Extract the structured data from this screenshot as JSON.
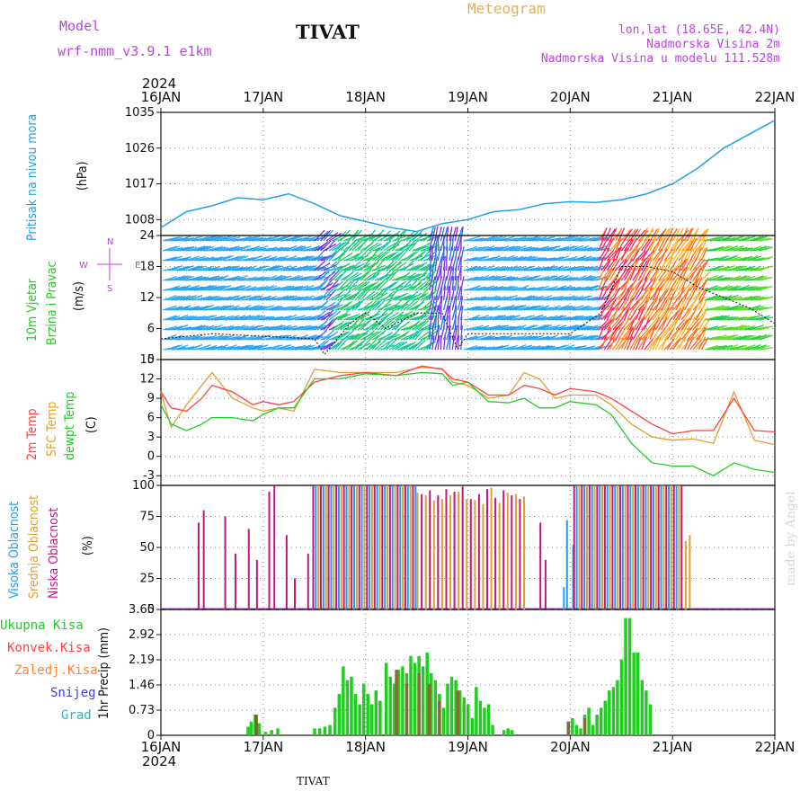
{
  "header": {
    "model_label": "Model",
    "model_name": "wrf-nmm_v3.9.1 e1km",
    "station": "TIVAT",
    "meteogram": "Meteogram",
    "lonlat": "lon,lat (18.65E, 42.4N)",
    "elevation": "Nadmorska Visina 2m",
    "model_elevation": "Nadmorska Visina u modelu 111.528m",
    "year_top": "2024",
    "year_bottom": "2024",
    "footer_station": "TIVAT",
    "watermark": "made by Angel"
  },
  "colors": {
    "pressure": "#1ea0ef",
    "wind_label": "#22cc22",
    "purple": "#bb44dd",
    "temp2m": "#ff4040",
    "sfc": "#e0a030",
    "dew": "#22cc22",
    "high_cloud": "#1ea0ef",
    "mid_cloud": "#e0a030",
    "low_cloud": "#c01880",
    "total_precip": "#22cc22",
    "conv_precip": "#ff4040",
    "frz_precip": "#ff7f30",
    "snow": "#4040dd",
    "hail": "#22bbbb"
  },
  "chart_data": {
    "type": "line",
    "x_axis": {
      "labels": [
        "16JAN",
        "17JAN",
        "18JAN",
        "19JAN",
        "20JAN",
        "21JAN",
        "22JAN"
      ],
      "range_days": [
        0,
        6
      ]
    },
    "panels": {
      "pressure": {
        "label": "Pritisak na nivou mora",
        "unit": "(hPa)",
        "ylim": [
          1004,
          1035
        ],
        "ticks": [
          1008,
          1017,
          1026,
          1035
        ],
        "x": [
          0,
          0.25,
          0.5,
          0.75,
          1.0,
          1.25,
          1.5,
          1.75,
          2.0,
          2.25,
          2.5,
          2.75,
          3.0,
          3.25,
          3.5,
          3.75,
          4.0,
          4.25,
          4.5,
          4.75,
          5.0,
          5.25,
          5.5,
          5.75,
          6.0
        ],
        "values": [
          1006,
          1010,
          1011.5,
          1013.5,
          1013,
          1014.5,
          1012,
          1009,
          1007.5,
          1006,
          1005,
          1007,
          1008,
          1010,
          1010.5,
          1012,
          1012.5,
          1012.3,
          1013,
          1014.5,
          1017,
          1021,
          1026,
          1029.5,
          1033
        ]
      },
      "wind": {
        "label": "10m Vjetar Brzina i Pravac",
        "unit": "(m/s)",
        "legend": {
          "n": "N",
          "e": "E",
          "s": "S",
          "w": "W"
        },
        "ylim": [
          0,
          24
        ],
        "ticks": [
          0,
          6,
          12,
          18,
          24
        ],
        "speed_x": [
          0,
          0.5,
          1.0,
          1.5,
          1.6,
          1.85,
          2.0,
          2.2,
          2.5,
          2.75,
          2.9,
          3.0,
          3.5,
          4.0,
          4.3,
          4.5,
          4.75,
          5.0,
          5.25,
          5.5,
          5.75,
          6.0
        ],
        "speed": [
          4,
          5,
          4.5,
          4,
          1,
          7,
          9,
          6,
          9,
          9,
          2,
          5,
          5,
          5,
          9,
          18,
          18,
          17,
          14,
          12,
          10,
          7
        ]
      },
      "temperature": {
        "labels": [
          "2m Temp",
          "SFC Temp",
          "dewpt Temp"
        ],
        "unit": "(C)",
        "ylim": [
          -4.5,
          15
        ],
        "ticks": [
          -3,
          0,
          3,
          6,
          9,
          12,
          15
        ],
        "x": [
          0,
          0.1,
          0.25,
          0.4,
          0.5,
          0.7,
          0.9,
          1.0,
          1.15,
          1.3,
          1.5,
          1.75,
          2.0,
          2.3,
          2.55,
          2.75,
          2.85,
          3.0,
          3.2,
          3.4,
          3.55,
          3.7,
          3.85,
          4.0,
          4.25,
          4.4,
          4.6,
          4.8,
          5.0,
          5.2,
          5.4,
          5.6,
          5.8,
          6.0
        ],
        "temp_2m": [
          10,
          7.5,
          7,
          9,
          11,
          10,
          8,
          8.5,
          8,
          8.5,
          11.5,
          12.5,
          13,
          12.5,
          14,
          13.5,
          12,
          11.5,
          9.5,
          9.5,
          11,
          10.5,
          9.5,
          10.5,
          10,
          9,
          7,
          5,
          3.5,
          4,
          4,
          9,
          4,
          3.8
        ],
        "temp_sfc": [
          10,
          4.5,
          8,
          11,
          13,
          9,
          7.5,
          7,
          7.5,
          7,
          13.5,
          13,
          13,
          13,
          13.8,
          13.6,
          11.5,
          11,
          9,
          9.5,
          13,
          12,
          9,
          9.5,
          9.5,
          8,
          5,
          3,
          2.5,
          2.7,
          2,
          10,
          2.5,
          1.8
        ],
        "dewpoint": [
          8,
          5,
          4,
          5,
          6,
          6,
          5.5,
          6.5,
          7.5,
          7.5,
          12,
          12,
          12.8,
          12.5,
          13,
          12.8,
          11,
          11.5,
          8.5,
          8.3,
          9,
          7.5,
          7.5,
          8.5,
          8,
          6.5,
          2,
          -1,
          -1.5,
          -1.5,
          -3,
          -1,
          -2,
          -2.5
        ]
      },
      "clouds": {
        "labels": [
          "Visoka Oblacnost",
          "Srednja Oblacnost",
          "Niska Oblacnost"
        ],
        "unit": "(%)",
        "ylim": [
          0,
          100
        ],
        "ticks": [
          0,
          25,
          50,
          75,
          100
        ]
      },
      "precip": {
        "labels": [
          "Ukupna Kisa",
          "Konvek.Kisa",
          "Zaledj.Kisa",
          "Snijeg",
          "Grad"
        ],
        "unit": "1hr Precip (mm)",
        "ylim": [
          0,
          3.65
        ],
        "ticks": [
          0,
          0.73,
          1.46,
          2.19,
          2.92,
          3.65
        ],
        "tick_labels": [
          "0",
          "0.73",
          "1.46",
          "2.19",
          "2.92",
          "3.65"
        ]
      }
    }
  }
}
